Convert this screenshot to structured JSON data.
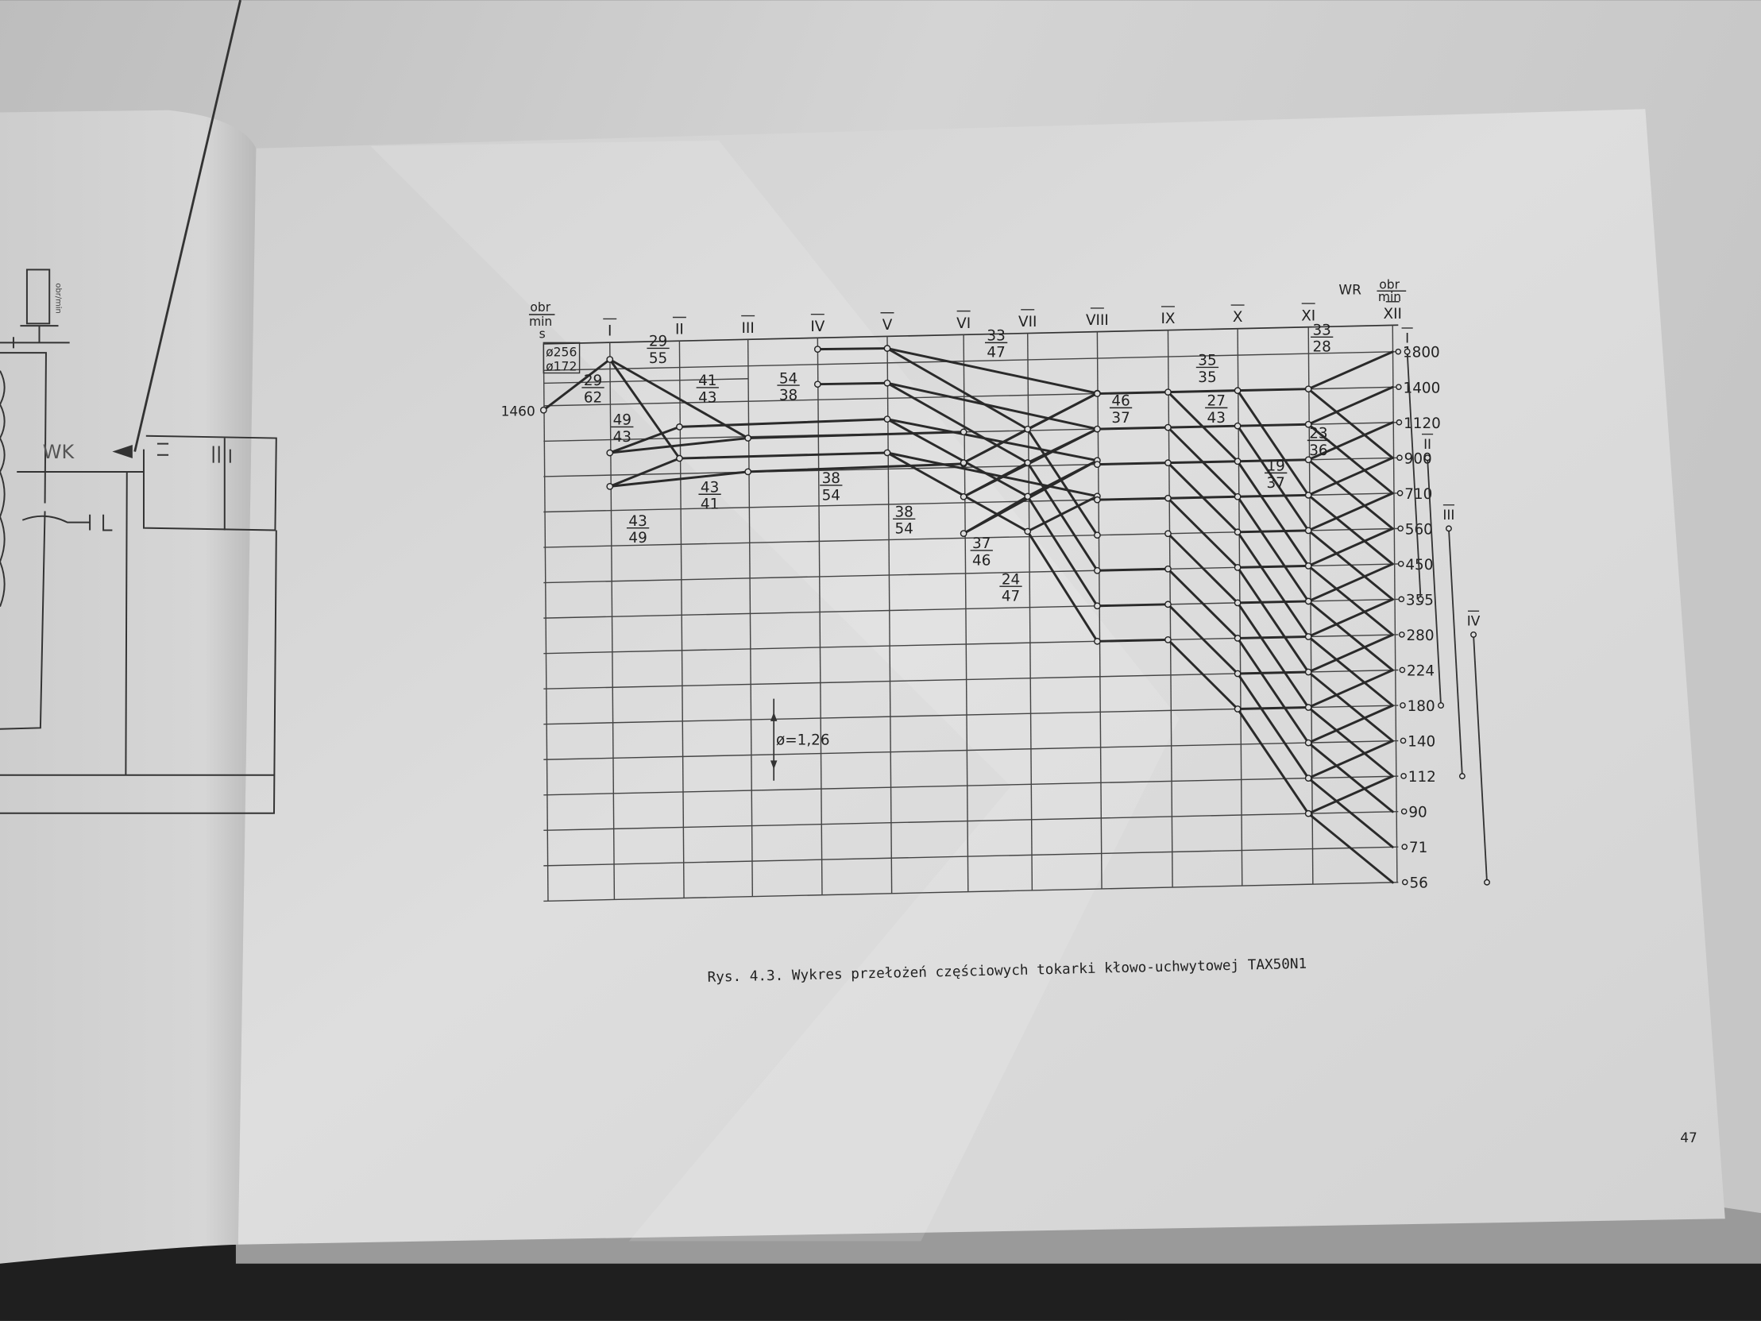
{
  "left_page": {
    "arrow_label": "WK",
    "motor_label": "obr/min"
  },
  "diagram": {
    "unit_left": {
      "top": "obr",
      "bottom": "min"
    },
    "motor_shaft": "s",
    "motor_speed": "1460",
    "pulley": {
      "d1": "ø256",
      "d2": "ø172"
    },
    "unit_right": {
      "wr": "WR",
      "top": "obr",
      "bottom": "min"
    },
    "shafts": [
      "I",
      "II",
      "III",
      "IV",
      "V",
      "VI",
      "VII",
      "VIII",
      "IX",
      "X",
      "XI",
      "XII"
    ],
    "output_speeds": [
      "1800",
      "1400",
      "1120",
      "900",
      "710",
      "560",
      "450",
      "355",
      "280",
      "224",
      "180",
      "140",
      "112",
      "90",
      "71",
      "56"
    ],
    "ranges": [
      {
        "label": "I",
        "from": "1800",
        "to": "355"
      },
      {
        "label": "II",
        "from": "900",
        "to": "180"
      },
      {
        "label": "III",
        "from": "560",
        "to": "112"
      },
      {
        "label": "IV",
        "from": "280",
        "to": "56"
      }
    ],
    "ratio_step": "ø=1,26",
    "gear_ratios": [
      {
        "num": "29",
        "den": "55"
      },
      {
        "num": "29",
        "den": "62"
      },
      {
        "num": "41",
        "den": "43"
      },
      {
        "num": "49",
        "den": "43"
      },
      {
        "num": "43",
        "den": "41"
      },
      {
        "num": "43",
        "den": "49"
      },
      {
        "num": "54",
        "den": "38"
      },
      {
        "num": "38",
        "den": "54"
      },
      {
        "num": "38",
        "den": "54"
      },
      {
        "num": "33",
        "den": "47"
      },
      {
        "num": "46",
        "den": "37"
      },
      {
        "num": "37",
        "den": "46"
      },
      {
        "num": "24",
        "den": "47"
      },
      {
        "num": "35",
        "den": "35"
      },
      {
        "num": "27",
        "den": "43"
      },
      {
        "num": "19",
        "den": "37"
      },
      {
        "num": "23",
        "den": "36"
      },
      {
        "num": "33",
        "den": "28"
      }
    ]
  },
  "caption": "Rys. 4.3. Wykres przełożeń częściowych tokarki kłowo-uchwytowej TAX50N1",
  "page_number": "47"
}
